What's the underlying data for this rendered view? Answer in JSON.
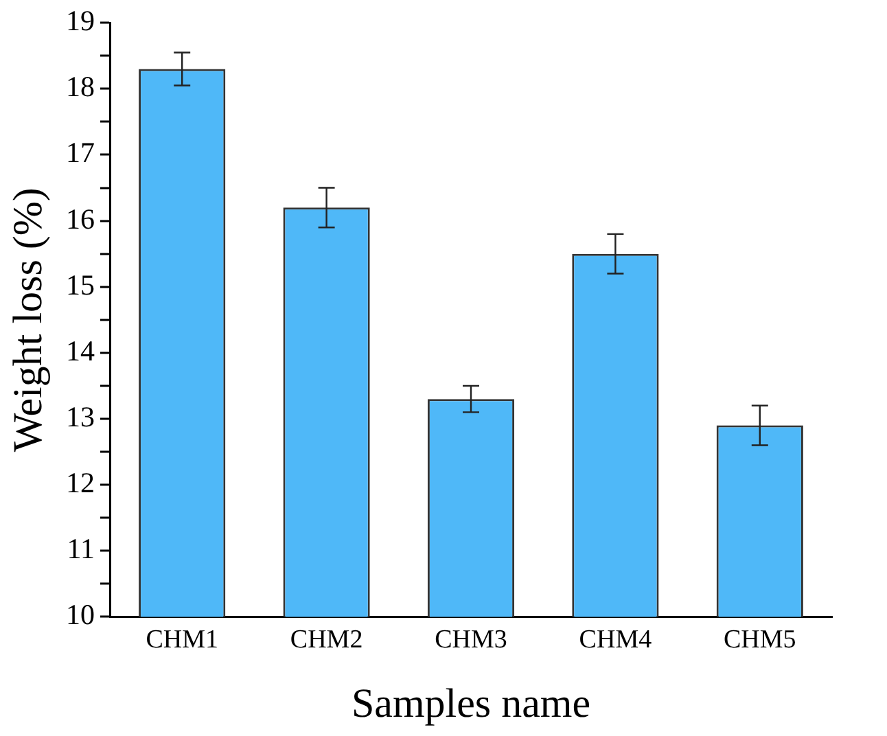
{
  "chart_data": {
    "type": "bar",
    "xlabel": "Samples name",
    "ylabel": "Weight loss (%)",
    "categories": [
      "CHM1",
      "CHM2",
      "CHM3",
      "CHM4",
      "CHM5"
    ],
    "values": [
      18.3,
      16.2,
      13.3,
      15.5,
      12.9
    ],
    "errors": [
      0.25,
      0.3,
      0.2,
      0.3,
      0.3
    ],
    "color": "#4fb8f8",
    "ylim": [
      10,
      19
    ],
    "yticks": [
      10,
      {
        "value": 10.5,
        "label": null
      },
      11,
      {
        "value": 11.5,
        "label": null
      },
      12,
      {
        "value": 12.5,
        "label": null
      },
      13,
      {
        "value": 13.5,
        "label": null
      },
      14,
      {
        "value": 14.5,
        "label": null
      },
      15,
      {
        "value": 15.5,
        "label": null
      },
      16,
      {
        "value": 16.5,
        "label": null
      },
      17,
      {
        "value": 17.5,
        "label": null
      },
      18,
      {
        "value": 18.5,
        "label": null
      },
      19
    ],
    "grid": false,
    "legend": false
  }
}
